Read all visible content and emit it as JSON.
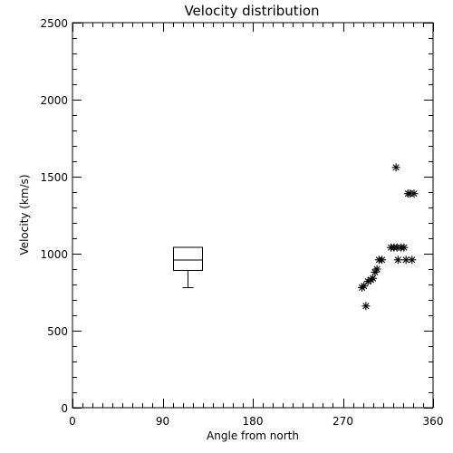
{
  "chart_data": {
    "type": "scatter",
    "title": "Velocity distribution",
    "xlabel": "Angle from north",
    "ylabel": "Velocity (km/s)",
    "xlim": [
      0,
      360
    ],
    "ylim": [
      0,
      2500
    ],
    "xticks": [
      "0",
      "90",
      "180",
      "270",
      "360"
    ],
    "yticks": [
      "0",
      "500",
      "1000",
      "1500",
      "2000",
      "2500"
    ],
    "grid": false,
    "series": [
      {
        "marker": "asterisk",
        "points": [
          {
            "x": 289,
            "y": 780
          },
          {
            "x": 291,
            "y": 790
          },
          {
            "x": 293,
            "y": 660
          },
          {
            "x": 295,
            "y": 820
          },
          {
            "x": 298,
            "y": 830
          },
          {
            "x": 300,
            "y": 840
          },
          {
            "x": 302,
            "y": 880
          },
          {
            "x": 304,
            "y": 900
          },
          {
            "x": 306,
            "y": 960
          },
          {
            "x": 309,
            "y": 960
          },
          {
            "x": 318,
            "y": 1040
          },
          {
            "x": 321,
            "y": 1040
          },
          {
            "x": 323,
            "y": 1560
          },
          {
            "x": 324,
            "y": 1040
          },
          {
            "x": 325,
            "y": 960
          },
          {
            "x": 328,
            "y": 1040
          },
          {
            "x": 331,
            "y": 1040
          },
          {
            "x": 333,
            "y": 960
          },
          {
            "x": 335,
            "y": 1390
          },
          {
            "x": 337,
            "y": 1390
          },
          {
            "x": 339,
            "y": 960
          },
          {
            "x": 341,
            "y": 1390
          }
        ]
      }
    ],
    "boxplot": {
      "x_left": 101,
      "x_right": 130,
      "whisker_low": 780,
      "q1": 890,
      "median": 960,
      "q3": 1040
    }
  }
}
